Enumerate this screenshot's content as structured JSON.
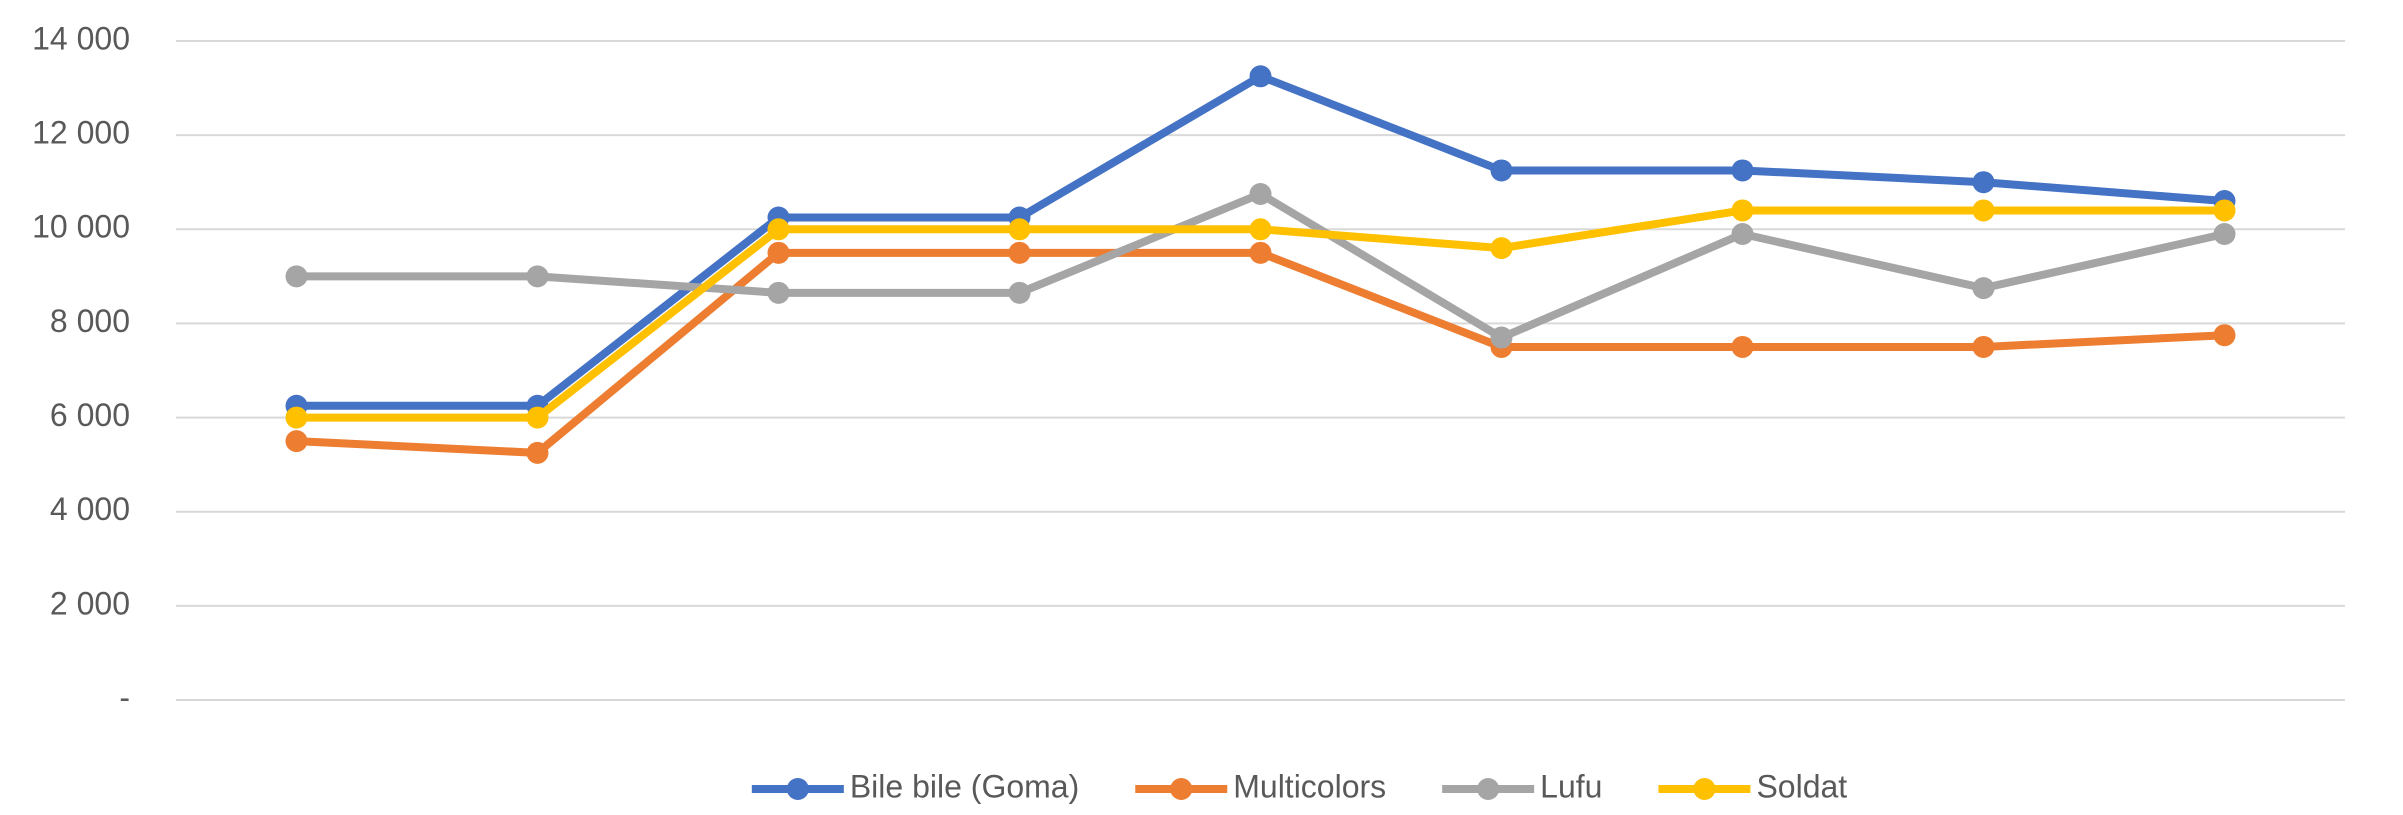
{
  "chart_data": {
    "type": "line",
    "categories": [
      null,
      null,
      null,
      null,
      null,
      null,
      null,
      null,
      null
    ],
    "series": [
      {
        "name": "Bile bile (Goma)",
        "color": "#4472c4",
        "values": [
          6250,
          6250,
          10250,
          10250,
          13250,
          11250,
          11250,
          11000,
          10600
        ]
      },
      {
        "name": "Multicolors",
        "color": "#ed7d31",
        "values": [
          5500,
          5250,
          9500,
          9500,
          9500,
          7500,
          7500,
          7500,
          7750
        ]
      },
      {
        "name": "Lufu",
        "color": "#a5a5a5",
        "values": [
          9000,
          9000,
          8650,
          8650,
          10750,
          7700,
          9900,
          8750,
          9900
        ]
      },
      {
        "name": "Soldat",
        "color": "#ffc000",
        "values": [
          6000,
          6000,
          10000,
          10000,
          10000,
          9600,
          10400,
          10400,
          10400
        ]
      }
    ],
    "ylim": [
      0,
      14000
    ],
    "yticks": [
      {
        "value": 0,
        "label": "-"
      },
      {
        "value": 2000,
        "label": "2 000"
      },
      {
        "value": 4000,
        "label": "4 000"
      },
      {
        "value": 6000,
        "label": "6 000"
      },
      {
        "value": 8000,
        "label": "8 000"
      },
      {
        "value": 10000,
        "label": "10 000"
      },
      {
        "value": 12000,
        "label": "12 000"
      },
      {
        "value": 14000,
        "label": "14 000"
      }
    ],
    "grid": true,
    "legend": "bottom"
  }
}
